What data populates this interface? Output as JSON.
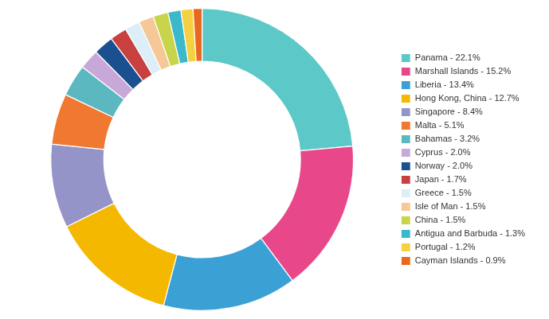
{
  "chart_data": {
    "type": "doughnut",
    "categories": [
      "Panama - 22.1%",
      "Marshall Islands - 15.2%",
      "Liberia - 13.4%",
      "Hong Kong, China - 12.7%",
      "Singapore - 8.4%",
      "Malta - 5.1%",
      "Bahamas - 3.2%",
      "Cyprus - 2.0%",
      "Norway - 2.0%",
      "Japan - 1.7%",
      "Greece - 1.5%",
      "Isle of Man - 1.5%",
      "China - 1.5%",
      "Antigua and Barbuda - 1.3%",
      "Portugal - 1.2%",
      "Cayman Islands - 0.9%"
    ],
    "values": [
      22.1,
      15.2,
      13.4,
      12.7,
      8.4,
      5.1,
      3.2,
      2.0,
      2.0,
      1.7,
      1.5,
      1.5,
      1.5,
      1.3,
      1.2,
      0.9
    ],
    "colors": [
      "#5DC8C8",
      "#E8488A",
      "#3BA0D4",
      "#F5B800",
      "#9494C8",
      "#F07830",
      "#5BB8C0",
      "#C8A8D8",
      "#1A5090",
      "#C84040",
      "#DCEEF8",
      "#F5C898",
      "#C8D44A",
      "#3CB8CC",
      "#F5D040",
      "#E86820"
    ],
    "legend": "right"
  }
}
